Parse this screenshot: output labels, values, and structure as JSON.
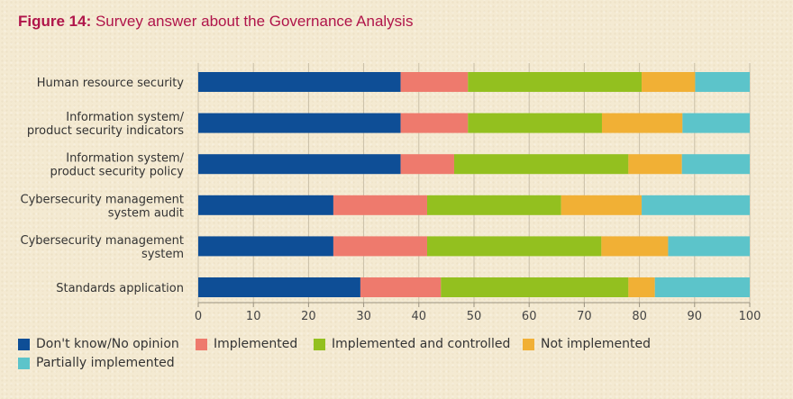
{
  "title": {
    "prefix": "Figure 14:",
    "text": " Survey answer about the Governance Analysis"
  },
  "chart_data": {
    "type": "bar",
    "orientation": "horizontal",
    "stacked": true,
    "categories": [
      "Human resource security",
      "Information system/\nproduct security indicators",
      "Information system/\nproduct security policy",
      "Cybersecurity management\nsystem audit",
      "Cybersecurity management\nsystem",
      "Standards application"
    ],
    "series": [
      {
        "name": "Don't know/No opinion",
        "color": "#0e4e96",
        "values": [
          36.7,
          36.7,
          36.7,
          24.5,
          24.5,
          29.4
        ]
      },
      {
        "name": "Implemented",
        "color": "#ee7a6d",
        "values": [
          12.2,
          12.2,
          9.7,
          17.0,
          17.0,
          14.6
        ]
      },
      {
        "name": "Implemented and controlled",
        "color": "#93c01f",
        "values": [
          31.5,
          24.3,
          31.6,
          24.3,
          31.6,
          34.0
        ]
      },
      {
        "name": "Not implemented",
        "color": "#f1b035",
        "values": [
          9.7,
          14.6,
          9.7,
          14.6,
          12.1,
          4.8
        ]
      },
      {
        "name": "Partially implemented",
        "color": "#5cc4ca",
        "values": [
          9.9,
          12.2,
          12.3,
          19.6,
          14.8,
          17.2
        ]
      }
    ],
    "xlim": [
      0,
      100
    ],
    "xticks": [
      0,
      10,
      20,
      30,
      40,
      50,
      60,
      70,
      80,
      90,
      100
    ],
    "grid": "vertical",
    "legend_position": "bottom"
  }
}
